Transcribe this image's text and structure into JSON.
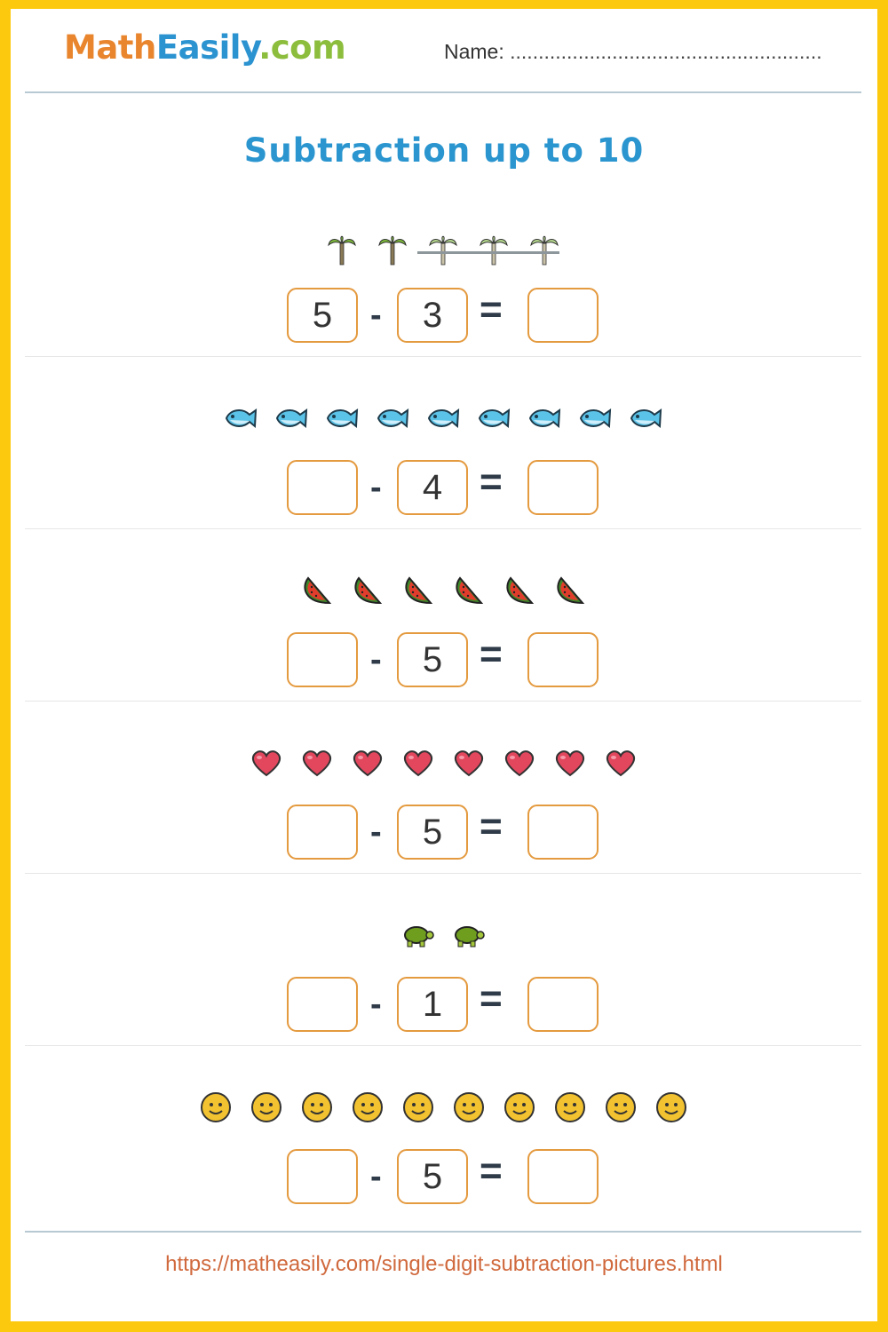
{
  "header": {
    "logo": {
      "part1": "Math",
      "part2": "Easily",
      "part3": ".com"
    },
    "name_label": "Name:",
    "name_line": "......................................................."
  },
  "title": "Subtraction up to 10",
  "operators": {
    "minus": "-",
    "equals": "="
  },
  "colors": {
    "border": "#fdc90f",
    "box": "#e49a3f",
    "title": "#2a95cf",
    "url": "#d0693d"
  },
  "problems": [
    {
      "icon": "palm-tree",
      "count": 5,
      "crossed": 3,
      "a": "5",
      "b": "3",
      "c": ""
    },
    {
      "icon": "fish",
      "count": 9,
      "crossed": 0,
      "a": "",
      "b": "4",
      "c": ""
    },
    {
      "icon": "watermelon",
      "count": 6,
      "crossed": 0,
      "a": "",
      "b": "5",
      "c": ""
    },
    {
      "icon": "heart",
      "count": 8,
      "crossed": 0,
      "a": "",
      "b": "5",
      "c": ""
    },
    {
      "icon": "turtle",
      "count": 2,
      "crossed": 0,
      "a": "",
      "b": "1",
      "c": ""
    },
    {
      "icon": "smiley",
      "count": 10,
      "crossed": 0,
      "a": "",
      "b": "5",
      "c": ""
    }
  ],
  "footer_url": "https://matheasily.com/single-digit-subtraction-pictures.html"
}
